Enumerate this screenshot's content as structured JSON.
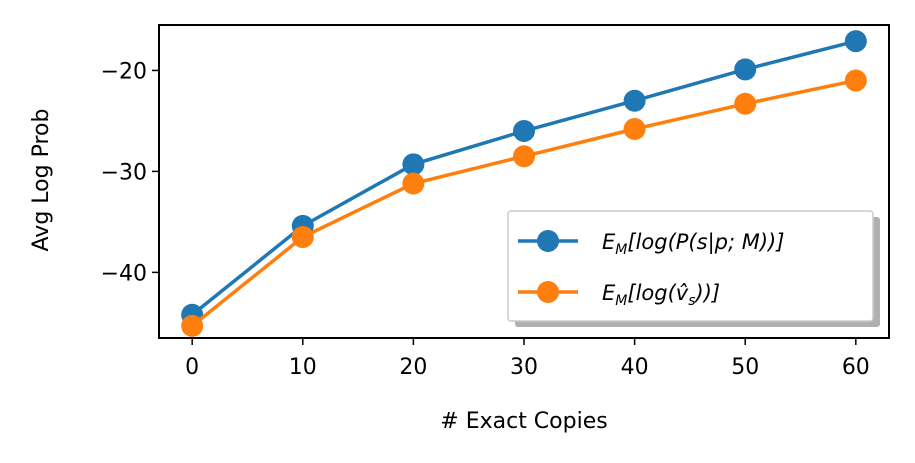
{
  "chart_data": {
    "type": "line",
    "xlabel": "# Exact Copies",
    "ylabel": "Avg Log Prob",
    "x": [
      0,
      10,
      20,
      30,
      40,
      50,
      60
    ],
    "xticks": [
      "0",
      "10",
      "20",
      "30",
      "40",
      "50",
      "60"
    ],
    "yticks": [
      "−20",
      "−30",
      "−40"
    ],
    "ytick_values": [
      -20,
      -30,
      -40
    ],
    "xlim": [
      -3,
      63
    ],
    "ylim": [
      -46.5,
      -15.5
    ],
    "grid": false,
    "legend_position": "lower-right",
    "series": [
      {
        "name": "E_M[log(P(s|p;M))]",
        "color": "#1f77b4",
        "values": [
          -44.2,
          -35.4,
          -29.3,
          -26.0,
          -23.0,
          -19.9,
          -17.1
        ]
      },
      {
        "name": "E_M[log(v̂_s))]",
        "color": "#ff7f0e",
        "values": [
          -45.3,
          -36.5,
          -31.2,
          -28.5,
          -25.8,
          -23.3,
          -21.0
        ]
      }
    ]
  }
}
